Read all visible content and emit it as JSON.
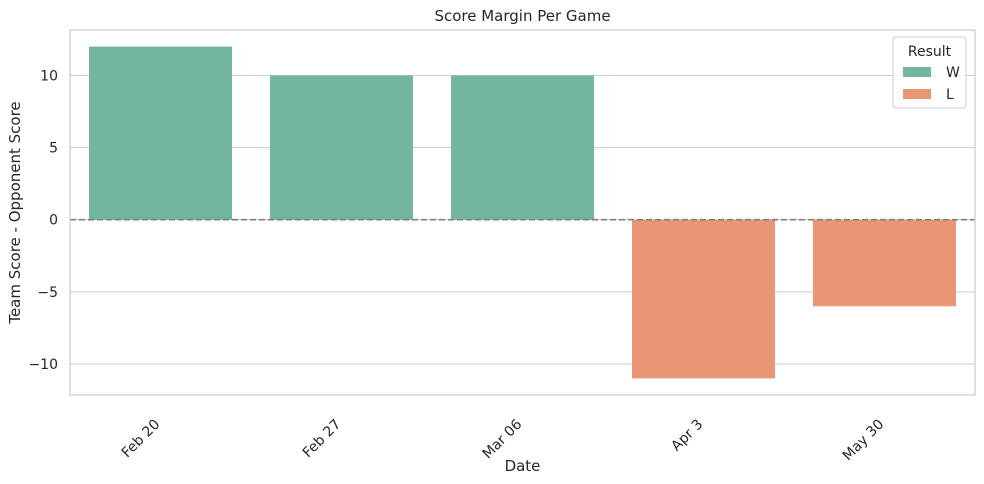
{
  "chart_data": {
    "type": "bar",
    "title": "Score Margin Per Game",
    "xlabel": "Date",
    "ylabel": "Team Score - Opponent Score",
    "categories": [
      "Feb 20",
      "Feb 27",
      "Mar 06",
      "Apr 3",
      "May 30"
    ],
    "values": [
      12,
      10,
      10,
      -11,
      -6
    ],
    "result": [
      "W",
      "W",
      "W",
      "L",
      "L"
    ],
    "ylim": [
      -12.15,
      13.15
    ],
    "yticks": [
      -10,
      -5,
      0,
      5,
      10
    ],
    "ytick_labels": [
      "−10",
      "−5",
      "0",
      "5",
      "10"
    ],
    "grid": true,
    "zero_line": {
      "y": 0,
      "style": "dashed",
      "color": "#808080"
    },
    "legend": {
      "title": "Result",
      "placement": "top-right",
      "entries": [
        {
          "label": "W",
          "color": "#72b6a1"
        },
        {
          "label": "L",
          "color": "#e99675"
        }
      ]
    },
    "colors": {
      "W": "#72b6a1",
      "L": "#e99675"
    }
  }
}
